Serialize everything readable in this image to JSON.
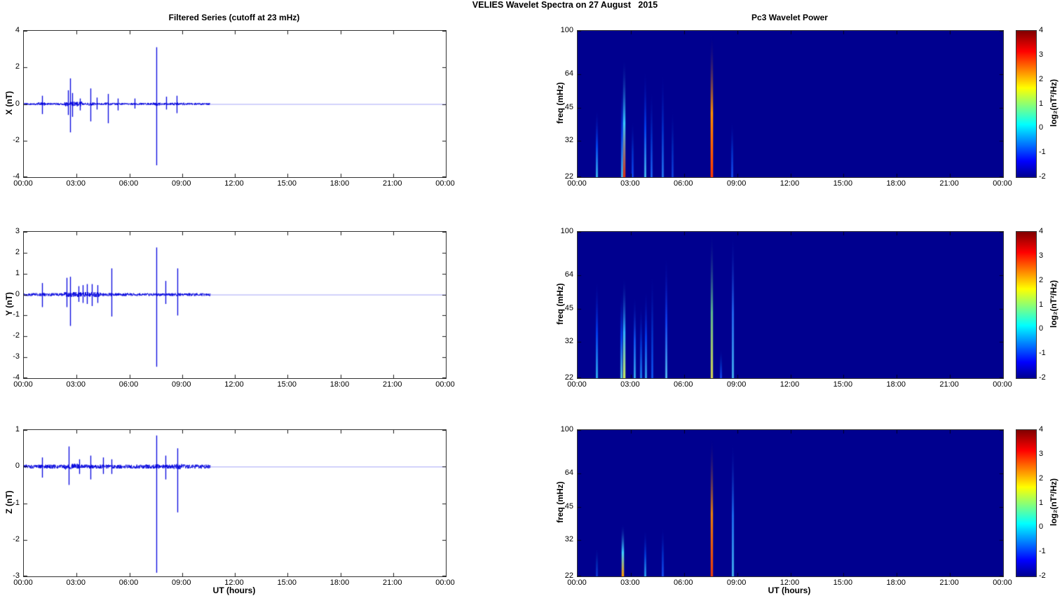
{
  "title": "VELIES Wavelet Spectra on 27 August   2015",
  "xlabel": "UT (hours)",
  "x_tick_labels": [
    "00:00",
    "03:00",
    "06:00",
    "09:00",
    "12:00",
    "15:00",
    "18:00",
    "21:00",
    "00:00"
  ],
  "left_column": {
    "title": "Filtered Series (cutoff at 23 mHz)"
  },
  "right_column": {
    "title": "Pc3 Wavelet Power",
    "ylabel": "freq (mHz)",
    "colorbar": {
      "label": "log₂(nT²/Hz)",
      "ticks": [
        4,
        3,
        2,
        1,
        0,
        -1,
        -2
      ],
      "range": [
        -2,
        4
      ],
      "colormap": "jet"
    }
  },
  "colors": {
    "trace": "#0000dd",
    "trace_tail": "rgba(90,90,240,0.55)",
    "spectrogram_background": "#00008f",
    "axis": "#333333",
    "jet_stops": [
      "#00008f",
      "#0000ff",
      "#00ffff",
      "#ffff00",
      "#ff0000",
      "#800000"
    ]
  },
  "chart_data": [
    {
      "type": "line",
      "row": 0,
      "col": "left",
      "series_name": "X",
      "title": "Filtered Series (cutoff at 23 mHz)",
      "ylabel": "X (nT)",
      "ylim": [
        -4,
        4
      ],
      "yticks": [
        4,
        2,
        0,
        -2,
        -4
      ],
      "x_range_hours": [
        0,
        24
      ],
      "xticks": [
        "00:00",
        "03:00",
        "06:00",
        "09:00",
        "12:00",
        "15:00",
        "18:00",
        "21:00",
        "00:00"
      ],
      "data_end_hour": 10.6,
      "baseline_nT": 0,
      "noise_amplitude_nT": 0.06,
      "noise_bands": [
        [
          0.8,
          1.2,
          0.09
        ],
        [
          2.3,
          3.3,
          0.13
        ],
        [
          3.6,
          4.0,
          0.08
        ],
        [
          4.6,
          5.0,
          0.08
        ],
        [
          7.3,
          7.8,
          0.09
        ],
        [
          8.4,
          9.2,
          0.08
        ]
      ],
      "spikes": [
        {
          "t": 1.05,
          "max": 0.45,
          "min": -0.55
        },
        {
          "t": 2.5,
          "max": 0.75,
          "min": -0.6
        },
        {
          "t": 2.62,
          "max": 1.4,
          "min": -1.55
        },
        {
          "t": 2.75,
          "max": 0.6,
          "min": -0.7
        },
        {
          "t": 3.2,
          "max": 0.3,
          "min": -0.35
        },
        {
          "t": 3.8,
          "max": 0.85,
          "min": -0.95
        },
        {
          "t": 4.15,
          "max": 0.35,
          "min": -0.3
        },
        {
          "t": 4.8,
          "max": 0.55,
          "min": -1.05
        },
        {
          "t": 5.35,
          "max": 0.3,
          "min": -0.35
        },
        {
          "t": 6.3,
          "max": 0.3,
          "min": -0.25
        },
        {
          "t": 7.55,
          "max": 3.1,
          "min": -3.35
        },
        {
          "t": 8.1,
          "max": 0.4,
          "min": -0.3
        },
        {
          "t": 8.7,
          "max": 0.45,
          "min": -0.5
        }
      ]
    },
    {
      "type": "heatmap",
      "row": 0,
      "col": "right",
      "series_name": "X wavelet power",
      "title": "Pc3 Wavelet Power",
      "ylabel": "freq (mHz)",
      "yscale": "log",
      "ylim": [
        22,
        100
      ],
      "yticks": [
        100,
        64,
        45,
        32,
        22
      ],
      "x_range_hours": [
        0,
        24
      ],
      "background_value_log2": -2,
      "colorbar": {
        "label": "log₂(nT²/Hz)",
        "ticks": [
          4,
          3,
          2,
          1,
          0,
          -1,
          -2
        ],
        "range": [
          -2,
          4
        ]
      },
      "streaks": [
        {
          "t": 1.05,
          "f_top": 45,
          "color": "#45d5ff",
          "fade": "#0050ff"
        },
        {
          "t": 2.5,
          "f_top": 58,
          "color": "#4fe0ff",
          "fade": "#0048ff"
        },
        {
          "t": 2.62,
          "f_top": 76,
          "color": "#e03010",
          "fade": "#38c8ff",
          "w": 3
        },
        {
          "t": 3.1,
          "f_top": 40,
          "color": "#1050ff",
          "fade": "#0030c8"
        },
        {
          "t": 3.8,
          "f_top": 68,
          "color": "#50d8ff",
          "fade": "#0048ff"
        },
        {
          "t": 4.15,
          "f_top": 55,
          "color": "#2070ff",
          "fade": "#0030c8"
        },
        {
          "t": 4.8,
          "f_top": 66,
          "color": "#2888ff",
          "fade": "#0034d0"
        },
        {
          "t": 5.35,
          "f_top": 45,
          "color": "#1048e8",
          "fade": "#0028b8"
        },
        {
          "t": 7.55,
          "f_top": 96,
          "color": "#ff3800",
          "fade": "#ff9000",
          "w": 3
        },
        {
          "t": 8.7,
          "f_top": 40,
          "color": "#1858ff",
          "fade": "#0030c8"
        }
      ]
    },
    {
      "type": "line",
      "row": 1,
      "col": "left",
      "series_name": "Y",
      "ylabel": "Y (nT)",
      "ylim": [
        -4,
        3
      ],
      "yticks": [
        3,
        2,
        1,
        0,
        -1,
        -2,
        -3,
        -4
      ],
      "x_range_hours": [
        0,
        24
      ],
      "xticks": [
        "00:00",
        "03:00",
        "06:00",
        "09:00",
        "12:00",
        "15:00",
        "18:00",
        "21:00",
        "00:00"
      ],
      "data_end_hour": 10.6,
      "baseline_nT": 0,
      "noise_amplitude_nT": 0.07,
      "noise_bands": [
        [
          0.9,
          1.2,
          0.09
        ],
        [
          2.3,
          4.4,
          0.12
        ],
        [
          4.9,
          5.1,
          0.09
        ]
      ],
      "spikes": [
        {
          "t": 1.05,
          "max": 0.55,
          "min": -0.6
        },
        {
          "t": 2.45,
          "max": 0.8,
          "min": -0.6
        },
        {
          "t": 2.62,
          "max": 0.85,
          "min": -1.5
        },
        {
          "t": 3.1,
          "max": 0.4,
          "min": -0.35
        },
        {
          "t": 3.35,
          "max": 0.45,
          "min": -0.4
        },
        {
          "t": 3.6,
          "max": 0.5,
          "min": -0.45
        },
        {
          "t": 3.85,
          "max": 0.5,
          "min": -0.55
        },
        {
          "t": 4.2,
          "max": 0.45,
          "min": -0.4
        },
        {
          "t": 5.0,
          "max": 1.25,
          "min": -1.05
        },
        {
          "t": 7.55,
          "max": 2.25,
          "min": -3.45
        },
        {
          "t": 8.05,
          "max": 0.65,
          "min": -0.45
        },
        {
          "t": 8.75,
          "max": 1.25,
          "min": -1.0
        }
      ]
    },
    {
      "type": "heatmap",
      "row": 1,
      "col": "right",
      "series_name": "Y wavelet power",
      "ylabel": "freq (mHz)",
      "yscale": "log",
      "ylim": [
        22,
        100
      ],
      "yticks": [
        100,
        64,
        45,
        32,
        22
      ],
      "x_range_hours": [
        0,
        24
      ],
      "background_value_log2": -2,
      "colorbar": {
        "label": "log₂(nT²/Hz)",
        "ticks": [
          4,
          3,
          2,
          1,
          0,
          -1,
          -2
        ],
        "range": [
          -2,
          4
        ]
      },
      "streaks": [
        {
          "t": 1.05,
          "f_top": 62,
          "color": "#38ccff",
          "fade": "#0048ff"
        },
        {
          "t": 2.45,
          "f_top": 55,
          "color": "#66e4e8",
          "fade": "#0048ff"
        },
        {
          "t": 2.62,
          "f_top": 63,
          "color": "#c8e860",
          "fade": "#30b0ff",
          "w": 3
        },
        {
          "t": 3.2,
          "f_top": 52,
          "color": "#40c8ff",
          "fade": "#1060ff"
        },
        {
          "t": 3.55,
          "f_top": 48,
          "color": "#2090ff",
          "fade": "#0038d8"
        },
        {
          "t": 3.85,
          "f_top": 56,
          "color": "#40c0ff",
          "fade": "#0048ff"
        },
        {
          "t": 4.2,
          "f_top": 66,
          "color": "#1060ff",
          "fade": "#0030c8"
        },
        {
          "t": 5.0,
          "f_top": 80,
          "color": "#60d8ff",
          "fade": "#1048ff"
        },
        {
          "t": 7.55,
          "f_top": 100,
          "color": "#e8e850",
          "fade": "#68c890",
          "w": 2.5
        },
        {
          "t": 8.05,
          "f_top": 30,
          "color": "#1850ff",
          "fade": "#0028b8"
        },
        {
          "t": 8.75,
          "f_top": 100,
          "color": "#50d0ff",
          "fade": "#2878ff"
        }
      ]
    },
    {
      "type": "line",
      "row": 2,
      "col": "left",
      "series_name": "Z",
      "ylabel": "Z (nT)",
      "ylim": [
        -3,
        1
      ],
      "yticks": [
        1,
        0,
        -1,
        -2,
        -3
      ],
      "xlabel": "UT (hours)",
      "x_range_hours": [
        0,
        24
      ],
      "xticks": [
        "00:00",
        "03:00",
        "06:00",
        "09:00",
        "12:00",
        "15:00",
        "18:00",
        "21:00",
        "00:00"
      ],
      "data_end_hour": 10.6,
      "baseline_nT": 0,
      "noise_amplitude_nT": 0.055,
      "noise_bands": [
        [
          2.3,
          3.1,
          0.08
        ],
        [
          7.4,
          7.7,
          0.07
        ],
        [
          8.5,
          9.0,
          0.07
        ]
      ],
      "spikes": [
        {
          "t": 1.05,
          "max": 0.25,
          "min": -0.3
        },
        {
          "t": 2.55,
          "max": 0.55,
          "min": -0.5
        },
        {
          "t": 3.15,
          "max": 0.2,
          "min": -0.2
        },
        {
          "t": 3.8,
          "max": 0.3,
          "min": -0.35
        },
        {
          "t": 4.5,
          "max": 0.25,
          "min": -0.2
        },
        {
          "t": 5.0,
          "max": 0.2,
          "min": -0.2
        },
        {
          "t": 7.55,
          "max": 0.85,
          "min": -2.9
        },
        {
          "t": 8.05,
          "max": 0.3,
          "min": -0.35
        },
        {
          "t": 8.75,
          "max": 0.5,
          "min": -1.25
        }
      ]
    },
    {
      "type": "heatmap",
      "row": 2,
      "col": "right",
      "series_name": "Z wavelet power",
      "ylabel": "freq (mHz)",
      "yscale": "log",
      "ylim": [
        22,
        100
      ],
      "yticks": [
        100,
        64,
        45,
        32,
        22
      ],
      "xlabel": "UT (hours)",
      "x_range_hours": [
        0,
        24
      ],
      "background_value_log2": -2,
      "colorbar": {
        "label": "log₂(nT²/Hz)",
        "ticks": [
          4,
          3,
          2,
          1,
          0,
          -1,
          -2
        ],
        "range": [
          -2,
          4
        ]
      },
      "streaks": [
        {
          "t": 1.05,
          "f_top": 30,
          "color": "#1040e0",
          "fade": "#0028b0"
        },
        {
          "t": 2.55,
          "f_top": 38,
          "color": "#ff9800",
          "fade": "#40d0ff",
          "w": 3
        },
        {
          "t": 3.8,
          "f_top": 36,
          "color": "#30b8ff",
          "fade": "#0040e0"
        },
        {
          "t": 4.8,
          "f_top": 37,
          "color": "#1858ff",
          "fade": "#0030c8"
        },
        {
          "t": 7.55,
          "f_top": 93,
          "color": "#ff4000",
          "fade": "#ff8c00",
          "w": 2.5
        },
        {
          "t": 8.75,
          "f_top": 90,
          "color": "#50d0ff",
          "fade": "#2080ff"
        }
      ]
    }
  ]
}
